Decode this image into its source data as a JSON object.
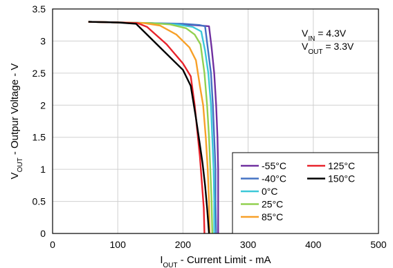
{
  "chart_data": {
    "type": "line",
    "title": "",
    "xlabel": {
      "main": "I",
      "sub": "OUT",
      "rest": " - Current Limit - mA"
    },
    "ylabel": {
      "main": "V",
      "sub": "OUT",
      "rest": " - Outpur Voltage - V"
    },
    "xlim": [
      0,
      500
    ],
    "ylim": [
      0,
      3.5
    ],
    "xticks": [
      0,
      100,
      200,
      300,
      400,
      500
    ],
    "xtick_labels": [
      "0",
      "100",
      "200",
      "300",
      "400",
      "500"
    ],
    "yticks": [
      0,
      0.5,
      1,
      1.5,
      2,
      2.5,
      3,
      3.5
    ],
    "ytick_labels": [
      "0",
      "0.5",
      "1",
      "1.5",
      "2",
      "2.5",
      "3",
      "3.5"
    ],
    "grid": true,
    "legend_position": "bottom-right",
    "annotations": [
      {
        "main": "V",
        "sub": "IN",
        "rest": " = 4.3V"
      },
      {
        "main": "V",
        "sub": "OUT",
        "rest": " = 3.3V"
      }
    ],
    "series": [
      {
        "name": "-55°C",
        "color": "#7030a0",
        "x": [
          55,
          100,
          150,
          200,
          228,
          240,
          244,
          248,
          251,
          253,
          254,
          254,
          254
        ],
        "y": [
          3.3,
          3.29,
          3.28,
          3.26,
          3.24,
          3.23,
          2.9,
          2.5,
          2.0,
          1.5,
          1.0,
          0.5,
          0
        ]
      },
      {
        "name": "-40°C",
        "color": "#4472c4",
        "x": [
          55,
          100,
          150,
          200,
          225,
          234,
          238,
          243,
          246,
          248,
          250,
          250,
          251
        ],
        "y": [
          3.3,
          3.29,
          3.28,
          3.27,
          3.25,
          3.23,
          2.9,
          2.5,
          2.0,
          1.5,
          1.0,
          0.5,
          0
        ]
      },
      {
        "name": "0°C",
        "color": "#3cc8d8",
        "x": [
          55,
          100,
          150,
          190,
          215,
          228,
          234,
          239,
          243,
          245,
          247,
          248,
          248
        ],
        "y": [
          3.3,
          3.29,
          3.28,
          3.26,
          3.22,
          3.15,
          2.85,
          2.5,
          2.0,
          1.5,
          1.0,
          0.5,
          0
        ]
      },
      {
        "name": "25°C",
        "color": "#92d050",
        "x": [
          55,
          100,
          150,
          180,
          205,
          218,
          227,
          233,
          237,
          240,
          242,
          244,
          245
        ],
        "y": [
          3.3,
          3.29,
          3.28,
          3.26,
          3.2,
          3.1,
          2.95,
          2.5,
          2.0,
          1.5,
          1.0,
          0.5,
          0
        ]
      },
      {
        "name": "85°C",
        "color": "#f7a028",
        "x": [
          55,
          100,
          140,
          165,
          190,
          210,
          220,
          226,
          231,
          235,
          238,
          240,
          241
        ],
        "y": [
          3.3,
          3.29,
          3.28,
          3.24,
          3.1,
          2.9,
          2.7,
          2.3,
          2.0,
          1.5,
          1.0,
          0.5,
          0
        ]
      },
      {
        "name": "125°C",
        "color": "#e8232b",
        "x": [
          55,
          100,
          130,
          145,
          175,
          200,
          212,
          218,
          222,
          226,
          229,
          232,
          233
        ],
        "y": [
          3.3,
          3.29,
          3.28,
          3.22,
          2.95,
          2.65,
          2.45,
          2.0,
          1.6,
          1.2,
          0.8,
          0.4,
          0
        ]
      },
      {
        "name": "150°C",
        "color": "#000000",
        "x": [
          55,
          100,
          128,
          140,
          170,
          200,
          212,
          220,
          225,
          230,
          234,
          237,
          240
        ],
        "y": [
          3.3,
          3.29,
          3.27,
          3.15,
          2.85,
          2.55,
          2.3,
          1.8,
          1.45,
          1.1,
          0.75,
          0.4,
          0
        ]
      }
    ],
    "legend_columns": [
      [
        "-55°C",
        "-40°C",
        "0°C",
        "25°C",
        "85°C"
      ],
      [
        "125°C",
        "150°C"
      ]
    ]
  }
}
